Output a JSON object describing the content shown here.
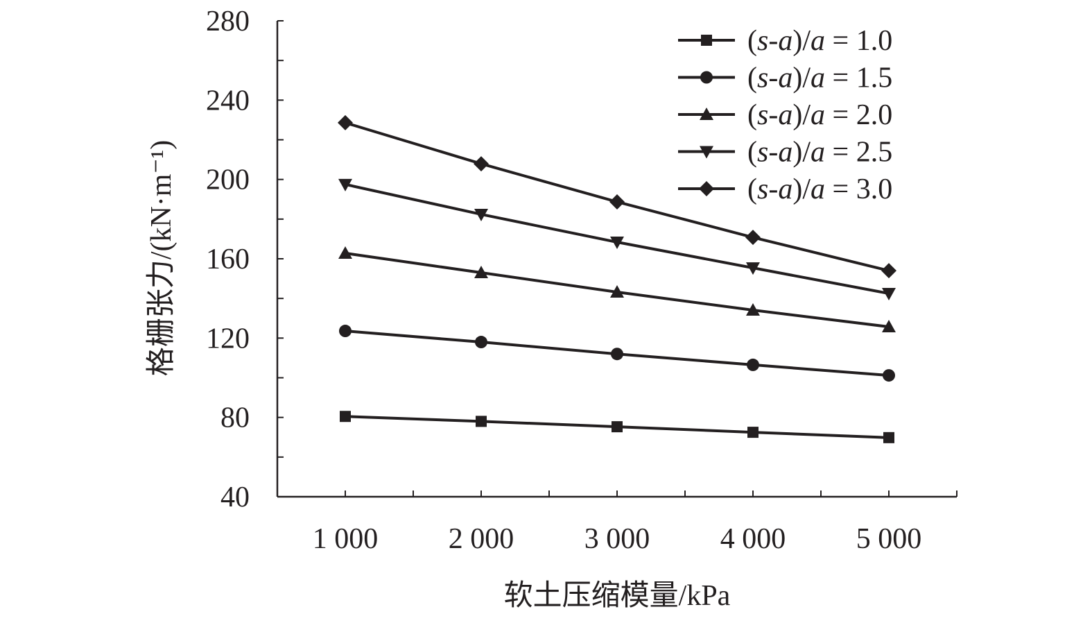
{
  "chart_data": {
    "type": "line",
    "title": "",
    "xlabel": "软土压缩模量/kPa",
    "ylabel": "格栅张力/(kN·m⁻¹)",
    "x": [
      1000,
      2000,
      3000,
      4000,
      5000
    ],
    "x_tick_labels": [
      "1 000",
      "2 000",
      "3 000",
      "4 000",
      "5 000"
    ],
    "xlim": [
      500,
      5500
    ],
    "ylim": [
      40,
      280
    ],
    "y_ticks": [
      40,
      80,
      120,
      160,
      200,
      240,
      280
    ],
    "y_tick_labels": [
      "40",
      "80",
      "120",
      "160",
      "200",
      "240",
      "280"
    ],
    "grid": false,
    "legend_position": "top-right",
    "series": [
      {
        "name": "(s-a)/a = 1.0",
        "name_prefix": "(",
        "name_s": "s",
        "name_mid": "-",
        "name_a1": "a",
        "name_close": ")/",
        "name_a2": "a",
        "name_value": " = 1.0",
        "marker": "square",
        "values": [
          80.5,
          78.0,
          75.3,
          72.5,
          69.8
        ]
      },
      {
        "name": "(s-a)/a = 1.5",
        "name_prefix": "(",
        "name_s": "s",
        "name_mid": "-",
        "name_a1": "a",
        "name_close": ")/",
        "name_a2": "a",
        "name_value": " = 1.5",
        "marker": "circle",
        "values": [
          123.6,
          118.0,
          112.0,
          106.5,
          101.2
        ]
      },
      {
        "name": "(s-a)/a = 2.0",
        "name_prefix": "(",
        "name_s": "s",
        "name_mid": "-",
        "name_a1": "a",
        "name_close": ")/",
        "name_a2": "a",
        "name_value": " = 2.0",
        "marker": "triangle-up",
        "values": [
          162.8,
          153.0,
          143.2,
          134.1,
          125.7
        ]
      },
      {
        "name": "(s-a)/a = 2.5",
        "name_prefix": "(",
        "name_s": "s",
        "name_mid": "-",
        "name_a1": "a",
        "name_close": ")/",
        "name_a2": "a",
        "name_value": " = 2.5",
        "marker": "triangle-down",
        "values": [
          197.5,
          182.4,
          168.4,
          155.4,
          142.5
        ]
      },
      {
        "name": "(s-a)/a = 3.0",
        "name_prefix": "(",
        "name_s": "s",
        "name_mid": "-",
        "name_a1": "a",
        "name_close": ")/",
        "name_a2": "a",
        "name_value": " = 3.0",
        "marker": "diamond",
        "values": [
          228.6,
          207.9,
          188.7,
          170.8,
          154.0
        ]
      }
    ],
    "line_color": "#231f20"
  }
}
